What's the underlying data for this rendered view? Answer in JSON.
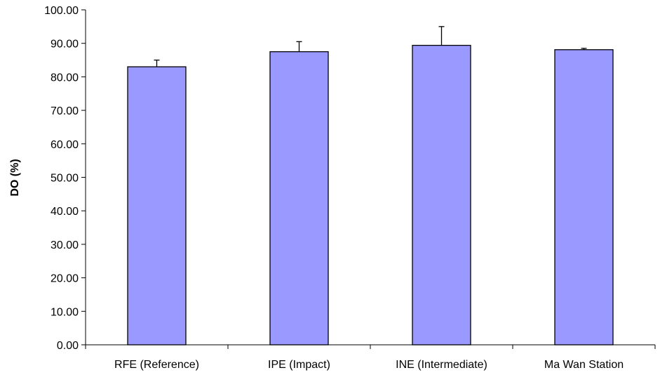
{
  "chart_data": {
    "type": "bar",
    "title": "",
    "xlabel": "",
    "ylabel": "DO (%)",
    "ylim": [
      0,
      100
    ],
    "yticks": [
      "0.00",
      "10.00",
      "20.00",
      "30.00",
      "40.00",
      "50.00",
      "60.00",
      "70.00",
      "80.00",
      "90.00",
      "100.00"
    ],
    "categories": [
      "RFE (Reference)",
      "IPE (Impact)",
      "INE (Intermediate)",
      "Ma Wan Station"
    ],
    "values": [
      83.0,
      87.5,
      89.4,
      88.1
    ],
    "error_upper": [
      2.0,
      3.0,
      5.6,
      0.4
    ],
    "grid": false,
    "legend": "none",
    "colors": {
      "bar_fill": "#9999FF",
      "bar_stroke": "#000000",
      "axis": "#000000"
    }
  }
}
